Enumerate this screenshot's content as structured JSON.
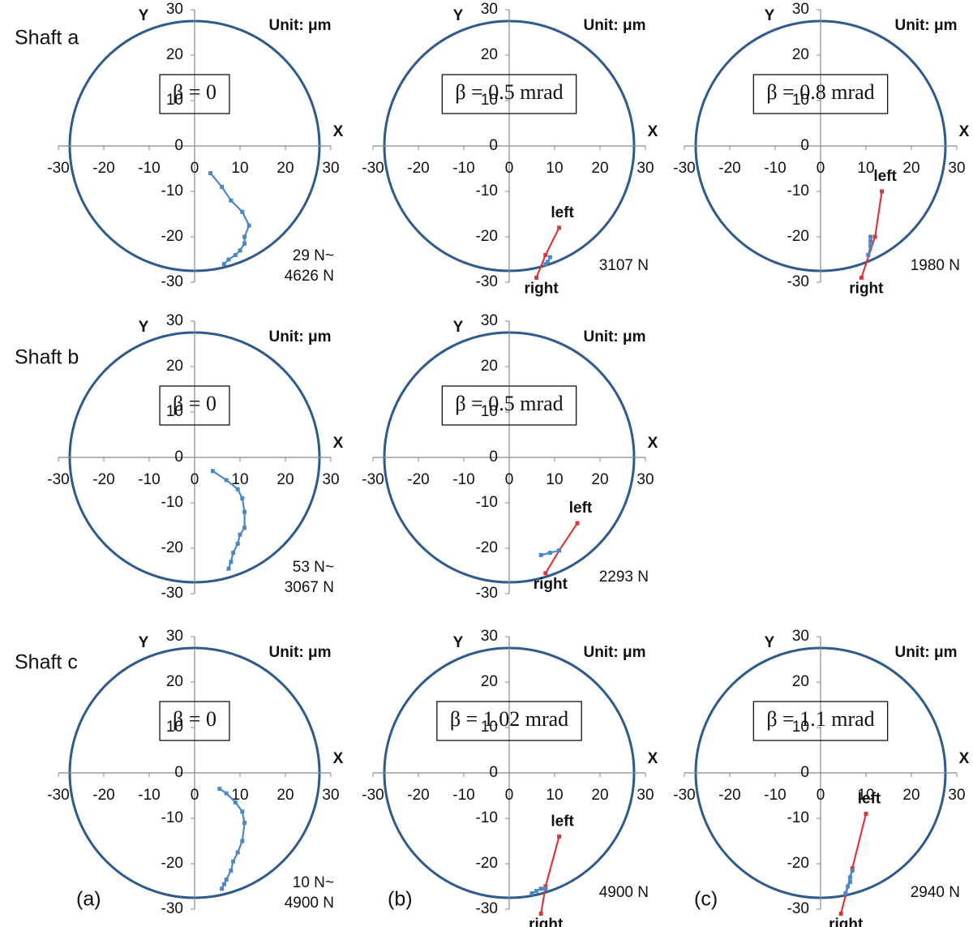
{
  "rows": [
    "Shaft a",
    "Shaft b",
    "Shaft c"
  ],
  "columns": [
    "(a)",
    "(b)",
    "(c)"
  ],
  "chart_data": [
    {
      "type": "line",
      "annotation": "β = 0",
      "unit_label": "Unit: μm",
      "x_label": "X",
      "y_label": "Y",
      "load_label": [
        "29 N~",
        "4626 N"
      ],
      "xlim": [
        -30,
        30
      ],
      "ylim": [
        -30,
        30
      ],
      "xticks": [
        -30,
        -20,
        -10,
        0,
        10,
        20,
        30
      ],
      "yticks": [
        -30,
        -20,
        -10,
        0,
        10,
        20,
        30
      ],
      "circle_radius": 27.5,
      "circle_color": "#2e5b8c",
      "series": [
        {
          "color": "#4a86c8",
          "x": [
            3.5,
            6,
            8,
            10.5,
            12,
            11,
            11,
            10,
            9,
            7.5,
            6.5
          ],
          "values": [
            -6,
            -9,
            -12,
            -14.5,
            -17.5,
            -20,
            -21.5,
            -23,
            -24,
            -25,
            -26
          ]
        }
      ]
    },
    {
      "type": "line",
      "annotation": "β = 0.5 mrad",
      "unit_label": "Unit: μm",
      "x_label": "X",
      "y_label": "Y",
      "load_label": [
        "3107 N"
      ],
      "xlim": [
        -30,
        30
      ],
      "ylim": [
        -30,
        30
      ],
      "xticks": [
        -30,
        -20,
        -10,
        0,
        10,
        20,
        30
      ],
      "yticks": [
        -30,
        -20,
        -10,
        0,
        10,
        20,
        30
      ],
      "circle_radius": 27.5,
      "circle_color": "#2e5b8c",
      "series": [
        {
          "color": "#d9383a",
          "x": [
            11,
            8,
            6
          ],
          "values": [
            -18,
            -24,
            -29
          ],
          "end_labels": [
            "left",
            "right"
          ]
        },
        {
          "color": "#4a86c8",
          "x": [
            9,
            8.5,
            8
          ],
          "values": [
            -24.5,
            -25.5,
            -26
          ]
        }
      ]
    },
    {
      "type": "line",
      "annotation": "β = 0.8 mrad",
      "unit_label": "Unit: μm",
      "x_label": "X",
      "y_label": "Y",
      "load_label": [
        "1980 N"
      ],
      "xlim": [
        -30,
        30
      ],
      "ylim": [
        -30,
        30
      ],
      "xticks": [
        -30,
        -20,
        -10,
        0,
        10,
        20,
        30
      ],
      "yticks": [
        -30,
        -20,
        -10,
        0,
        10,
        20,
        30
      ],
      "circle_radius": 27.5,
      "circle_color": "#2e5b8c",
      "series": [
        {
          "color": "#d9383a",
          "x": [
            13.5,
            12,
            9
          ],
          "values": [
            -10,
            -20,
            -29
          ],
          "end_labels": [
            "left",
            "right"
          ]
        },
        {
          "color": "#4a86c8",
          "x": [
            11,
            11,
            11,
            10.5
          ],
          "values": [
            -20,
            -21,
            -22,
            -24
          ]
        }
      ]
    },
    {
      "type": "line",
      "annotation": "β = 0",
      "unit_label": "Unit: μm",
      "x_label": "X",
      "y_label": "Y",
      "load_label": [
        "53 N~",
        "3067 N"
      ],
      "xlim": [
        -30,
        30
      ],
      "ylim": [
        -30,
        30
      ],
      "xticks": [
        -30,
        -20,
        -10,
        0,
        10,
        20,
        30
      ],
      "yticks": [
        -30,
        -20,
        -10,
        0,
        10,
        20,
        30
      ],
      "circle_radius": 27.5,
      "circle_color": "#2e5b8c",
      "series": [
        {
          "color": "#4a86c8",
          "x": [
            4,
            7,
            9.5,
            10.5,
            11,
            11,
            10,
            9.5,
            8.5,
            8,
            7.5
          ],
          "values": [
            -3,
            -5,
            -7,
            -9,
            -12,
            -15.5,
            -17,
            -19,
            -21,
            -23,
            -24.5
          ]
        }
      ]
    },
    {
      "type": "line",
      "annotation": "β = 0.5 mrad",
      "unit_label": "Unit: μm",
      "x_label": "X",
      "y_label": "Y",
      "load_label": [
        "2293 N"
      ],
      "xlim": [
        -30,
        30
      ],
      "ylim": [
        -30,
        30
      ],
      "xticks": [
        -30,
        -20,
        -10,
        0,
        10,
        20,
        30
      ],
      "yticks": [
        -30,
        -20,
        -10,
        0,
        10,
        20,
        30
      ],
      "circle_radius": 27.5,
      "circle_color": "#2e5b8c",
      "series": [
        {
          "color": "#d9383a",
          "x": [
            15,
            11,
            8
          ],
          "values": [
            -14.5,
            -20.5,
            -25.5
          ],
          "end_labels": [
            "left",
            "right"
          ]
        },
        {
          "color": "#4a86c8",
          "x": [
            7,
            9,
            11
          ],
          "values": [
            -21.5,
            -21,
            -20.5
          ]
        }
      ]
    },
    {
      "type": "line",
      "annotation": "β = 0",
      "unit_label": "Unit: μm",
      "x_label": "X",
      "y_label": "Y",
      "load_label": [
        "10 N~",
        "4900 N"
      ],
      "xlim": [
        -30,
        30
      ],
      "ylim": [
        -30,
        30
      ],
      "xticks": [
        -30,
        -20,
        -10,
        0,
        10,
        20,
        30
      ],
      "yticks": [
        -30,
        -20,
        -10,
        0,
        10,
        20,
        30
      ],
      "circle_radius": 27.5,
      "circle_color": "#2e5b8c",
      "series": [
        {
          "color": "#4a86c8",
          "x": [
            5.5,
            7,
            9,
            10.5,
            11,
            10.5,
            9.5,
            8.5,
            8,
            7,
            6.5,
            6
          ],
          "values": [
            -3.5,
            -4.5,
            -6.5,
            -8.5,
            -11,
            -15,
            -17.5,
            -19.5,
            -21.5,
            -23.5,
            -24.5,
            -25.5
          ]
        }
      ]
    },
    {
      "type": "line",
      "annotation": "β = 1.02 mrad",
      "unit_label": "Unit: μm",
      "x_label": "X",
      "y_label": "Y",
      "load_label": [
        "4900 N"
      ],
      "xlim": [
        -30,
        30
      ],
      "ylim": [
        -30,
        30
      ],
      "xticks": [
        -30,
        -20,
        -10,
        0,
        10,
        20,
        30
      ],
      "yticks": [
        -30,
        -20,
        -10,
        0,
        10,
        20,
        30
      ],
      "circle_radius": 27.5,
      "circle_color": "#2e5b8c",
      "series": [
        {
          "color": "#d9383a",
          "x": [
            11,
            8,
            7
          ],
          "values": [
            -14,
            -25,
            -31
          ],
          "end_labels": [
            "left",
            "right"
          ]
        },
        {
          "color": "#4a86c8",
          "x": [
            5,
            6,
            7,
            8
          ],
          "values": [
            -26.5,
            -26,
            -25.5,
            -25.5
          ]
        }
      ]
    },
    {
      "type": "line",
      "annotation": "β = 1.1 mrad",
      "unit_label": "Unit: μm",
      "x_label": "X",
      "y_label": "Y",
      "load_label": [
        "2940 N"
      ],
      "xlim": [
        -30,
        30
      ],
      "ylim": [
        -30,
        30
      ],
      "xticks": [
        -30,
        -20,
        -10,
        0,
        10,
        20,
        30
      ],
      "yticks": [
        -30,
        -20,
        -10,
        0,
        10,
        20,
        30
      ],
      "circle_radius": 27.5,
      "circle_color": "#2e5b8c",
      "series": [
        {
          "color": "#d9383a",
          "x": [
            10,
            7,
            4.5
          ],
          "values": [
            -9,
            -21,
            -31
          ],
          "end_labels": [
            "left",
            "right"
          ]
        },
        {
          "color": "#4a86c8",
          "x": [
            7,
            6.5,
            6.5,
            6,
            5.5
          ],
          "values": [
            -21.5,
            -23,
            -24,
            -25,
            -26.5
          ]
        }
      ]
    }
  ]
}
